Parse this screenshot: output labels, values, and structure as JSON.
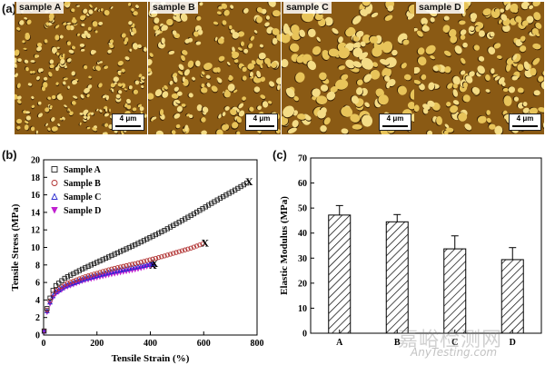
{
  "panel_a": {
    "letter": "(a)",
    "images": [
      {
        "label": "sample A",
        "scale": "4 μm"
      },
      {
        "label": "sample B",
        "scale": "4 μm"
      },
      {
        "label": "sample C",
        "scale": "4 μm"
      },
      {
        "label": "sample D",
        "scale": "4 μm"
      }
    ]
  },
  "panel_b_letter": "(b)",
  "panel_c_letter": "(c)",
  "watermark": {
    "cn": "嘉峪检测网",
    "en": "AnyTesting.com"
  },
  "colors": {
    "sampleA": "#222222",
    "sampleB": "#b03030",
    "sampleC": "#2a2ad0",
    "sampleD": "#c020d0"
  },
  "chart_data": [
    {
      "type": "scatter",
      "title": "",
      "xlabel": "Tensile Strain (%)",
      "ylabel": "Tensile Stress (MPa)",
      "xlim": [
        0,
        800
      ],
      "ylim": [
        0,
        20
      ],
      "xticks": [
        0,
        200,
        400,
        600,
        800
      ],
      "yticks": [
        0,
        2,
        4,
        6,
        8,
        10,
        12,
        14,
        16,
        18,
        20
      ],
      "series": [
        {
          "name": "Sample A",
          "marker": "square",
          "break_strain": 770,
          "x": [
            0,
            15,
            40,
            80,
            150,
            250,
            350,
            450,
            550,
            650,
            720,
            770
          ],
          "y": [
            0,
            3.5,
            5.5,
            6.5,
            7.6,
            9.0,
            10.4,
            11.9,
            13.6,
            15.4,
            16.6,
            17.5
          ]
        },
        {
          "name": "Sample B",
          "marker": "circle",
          "break_strain": 605,
          "x": [
            0,
            15,
            40,
            80,
            150,
            250,
            350,
            450,
            550,
            605
          ],
          "y": [
            0,
            3.3,
            5.0,
            5.8,
            6.6,
            7.5,
            8.2,
            9.0,
            9.9,
            10.5
          ]
        },
        {
          "name": "Sample C",
          "marker": "triangle-up",
          "break_strain": 415,
          "x": [
            0,
            15,
            40,
            80,
            150,
            250,
            350,
            415
          ],
          "y": [
            0,
            3.2,
            4.8,
            5.6,
            6.4,
            7.2,
            7.8,
            8.2
          ]
        },
        {
          "name": "Sample D",
          "marker": "triangle-down",
          "break_strain": 410,
          "x": [
            0,
            15,
            40,
            80,
            150,
            250,
            350,
            410
          ],
          "y": [
            0,
            3.0,
            4.6,
            5.4,
            6.2,
            6.9,
            7.5,
            8.0
          ]
        }
      ],
      "break_marker": "X"
    },
    {
      "type": "bar",
      "title": "",
      "xlabel": "",
      "ylabel": "Elastic Modulus (MPa)",
      "categories": [
        "A",
        "B",
        "C",
        "D"
      ],
      "values": [
        47.2,
        44.5,
        33.7,
        29.4
      ],
      "errors": [
        3.8,
        2.9,
        5.2,
        4.8
      ],
      "ylim": [
        0,
        70
      ],
      "yticks": [
        0,
        10,
        20,
        30,
        40,
        50,
        60,
        70
      ]
    }
  ]
}
